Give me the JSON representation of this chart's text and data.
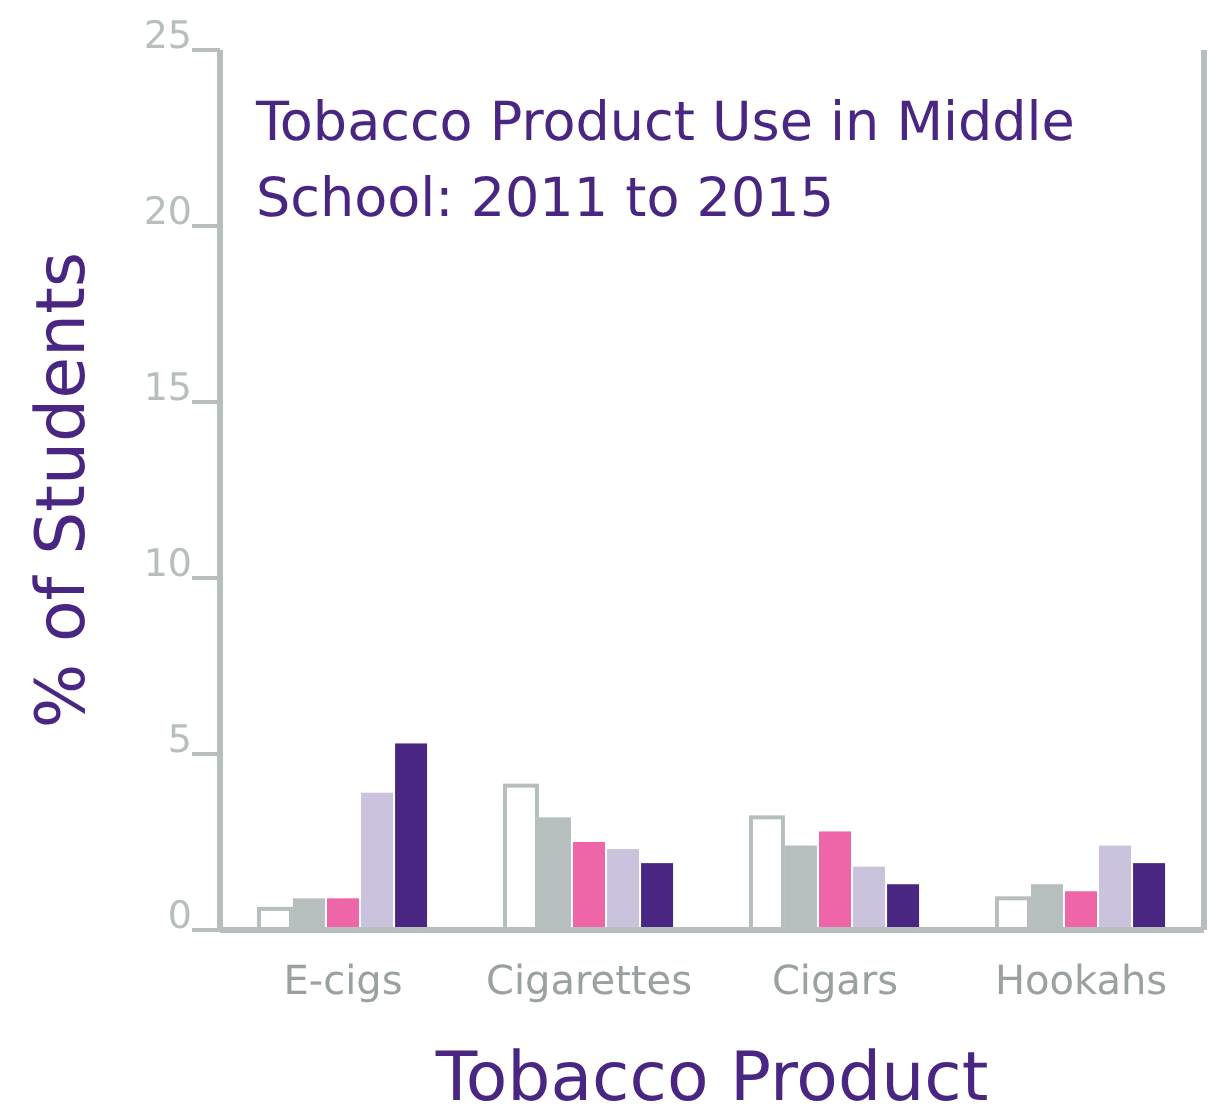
{
  "chart_data": {
    "type": "bar",
    "title": "Tobacco Product Use in Middle School: 2011 to 2015",
    "xlabel": "Tobacco Product",
    "ylabel": "% of Students",
    "categories": [
      "E-cigs",
      "Cigarettes",
      "Cigars",
      "Hookahs"
    ],
    "series": [
      {
        "color": "#ffffff",
        "values": [
          0.6,
          4.1,
          3.2,
          0.9
        ]
      },
      {
        "color": "#b7bfbe",
        "values": [
          0.9,
          3.2,
          2.4,
          1.3
        ]
      },
      {
        "color": "#ef66a8",
        "values": [
          0.9,
          2.5,
          2.8,
          1.1
        ]
      },
      {
        "color": "#cbc3de",
        "values": [
          3.9,
          2.3,
          1.8,
          2.4
        ]
      },
      {
        "color": "#4a2683",
        "values": [
          5.3,
          1.9,
          1.3,
          1.9
        ]
      }
    ],
    "ylim": [
      0,
      25
    ],
    "yticks": [
      0,
      5,
      10,
      15,
      20,
      25
    ],
    "grid": false
  }
}
